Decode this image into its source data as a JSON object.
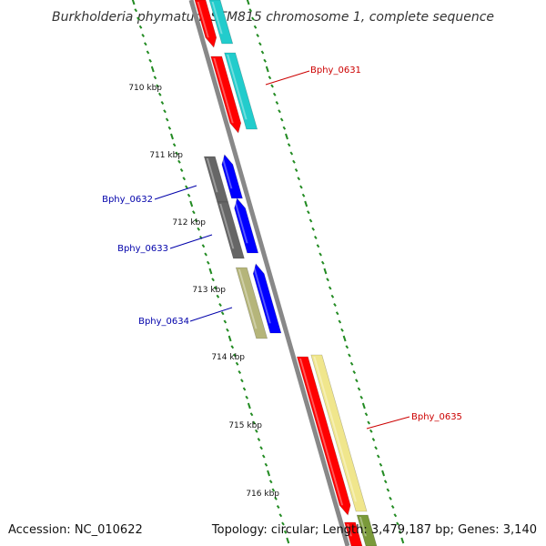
{
  "title": "Burkholderia phymatum STM815 chromosome 1, complete sequence",
  "footer": {
    "accession": "Accession: NC_010622",
    "summary": "Topology: circular; Length: 3,479,187 bp; Genes: 3,140"
  },
  "ticks": [
    {
      "label": "710 kbp"
    },
    {
      "label": "711 kbp"
    },
    {
      "label": "712 kbp"
    },
    {
      "label": "713 kbp"
    },
    {
      "label": "714 kbp"
    },
    {
      "label": "715 kbp"
    },
    {
      "label": "716 kbp"
    }
  ],
  "gene_labels": [
    {
      "name": "Bphy_0631",
      "color": "#cc0000",
      "strand": "forward"
    },
    {
      "name": "Bphy_0632",
      "color": "#0000aa",
      "strand": "reverse"
    },
    {
      "name": "Bphy_0633",
      "color": "#0000aa",
      "strand": "reverse"
    },
    {
      "name": "Bphy_0634",
      "color": "#0000aa",
      "strand": "reverse"
    },
    {
      "name": "Bphy_0635",
      "color": "#cc0000",
      "strand": "forward"
    }
  ],
  "colors": {
    "backbone": "#888888",
    "tick": "#228b22",
    "forward_gene": "#ff0000",
    "reverse_gene": "#0000ff",
    "cog_cyan": "#22cccc",
    "cog_gray": "#666666",
    "cog_olive": "#b5b57a",
    "cog_yellow": "#f0e68c",
    "cog_green": "#7a9a3a"
  }
}
